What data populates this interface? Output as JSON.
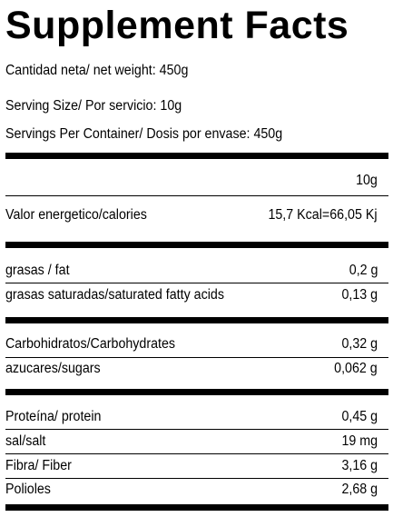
{
  "title": "Supplement Facts",
  "net_weight": "Cantidad neta/ net weight: 450g",
  "serving_size": "Serving Size/ Por servicio: 10g",
  "servings_per_container": "Servings Per Container/ Dosis por envase:  450g",
  "column_header": "10g",
  "rows": [
    {
      "label": "Valor energetico/calories",
      "value": "15,7 Kcal=66,05 Kj"
    },
    {
      "label": "grasas / fat",
      "value": "0,2 g"
    },
    {
      "label": "grasas saturadas/saturated fatty acids",
      "value": "0,13 g"
    },
    {
      "label": "Carbohidratos/Carbohydrates",
      "value": "0,32 g"
    },
    {
      "label": "azucares/sugars",
      "value": "0,062 g"
    },
    {
      "label": "Proteína/ protein",
      "value": "0,45 g"
    },
    {
      "label": "sal/salt",
      "value": "19 mg"
    },
    {
      "label": "Fibra/ Fiber",
      "value": "3,16 g"
    },
    {
      "label": "Polioles",
      "value": "2,68 g"
    }
  ]
}
